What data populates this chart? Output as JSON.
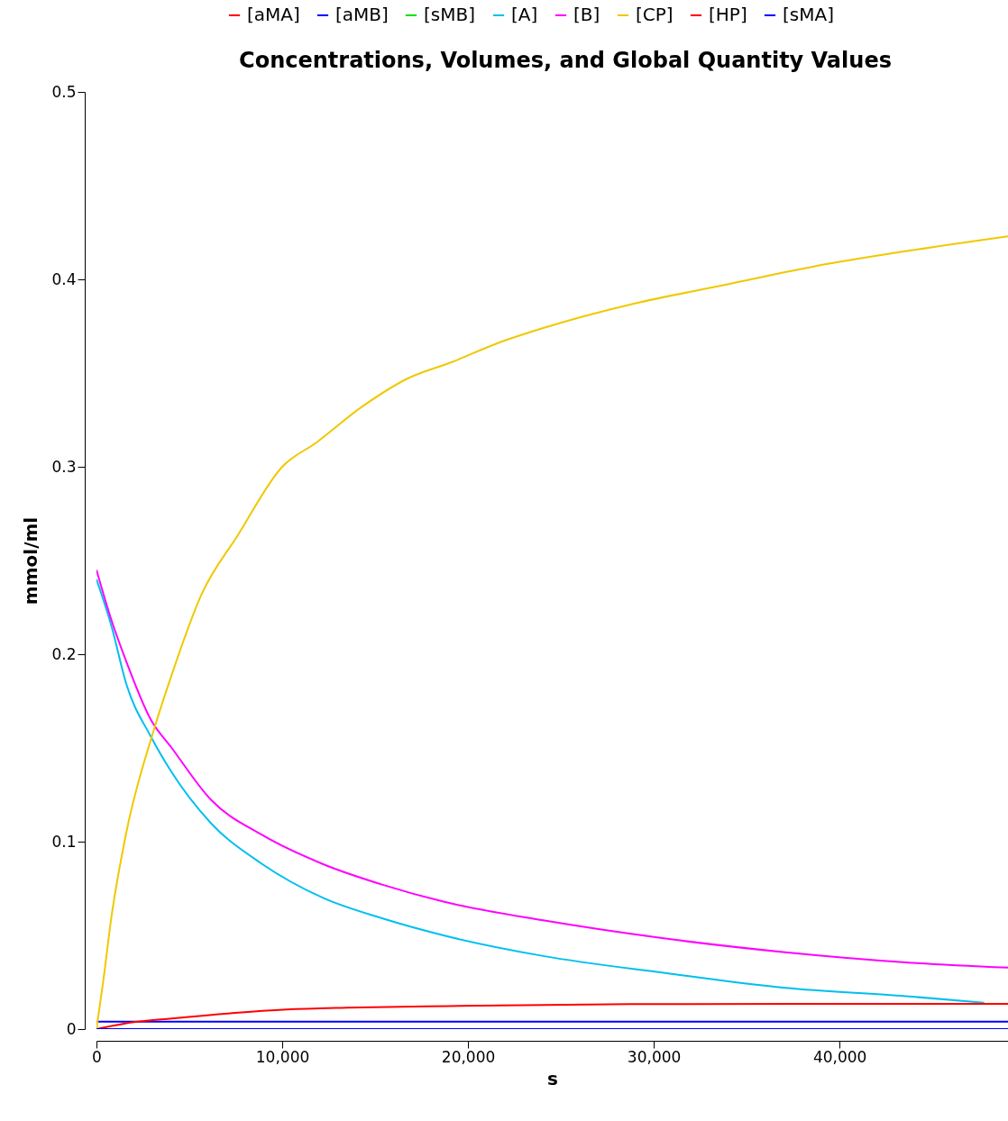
{
  "chart_data": {
    "type": "line",
    "title": "Concentrations, Volumes, and Global Quantity Values",
    "xlabel": "s",
    "ylabel": "mmol/ml",
    "xlim": [
      0,
      49070
    ],
    "ylim": [
      0,
      0.5
    ],
    "xticks": [
      0,
      {
        "value": 10000,
        "label": "10,000"
      },
      {
        "value": 20000,
        "label": "20,000"
      },
      {
        "value": 30000,
        "label": "30,000"
      },
      {
        "value": 40000,
        "label": "40,000"
      }
    ],
    "yticks": [
      0,
      0.1,
      0.2,
      0.3,
      0.4,
      0.5
    ],
    "grid": false,
    "legend": "top",
    "marker": "none",
    "line_style": "solid",
    "series": [
      {
        "name": "[aMA]",
        "color": "#ff0000"
      },
      {
        "name": "[aMB]",
        "color": "#0000ff",
        "x": [
          0,
          49070
        ],
        "values": [
          0.004,
          0.004
        ]
      },
      {
        "name": "[sMB]",
        "color": "#00e000"
      },
      {
        "name": "[A]",
        "color": "#00bfef",
        "x": [
          0,
          780,
          1610,
          2930,
          4050,
          6150,
          8930,
          12200,
          15410,
          18680,
          24050,
          30540,
          37070,
          43560,
          47800
        ],
        "values": [
          0.24,
          0.216,
          0.184,
          0.156,
          0.137,
          0.11,
          0.088,
          0.07,
          0.059,
          0.05,
          0.039,
          0.03,
          0.022,
          0.0176,
          0.014
        ]
      },
      {
        "name": "[B]",
        "color": "#ff00ff",
        "x": [
          0,
          780,
          1610,
          2930,
          4050,
          6150,
          8930,
          12200,
          15410,
          18680,
          24050,
          30540,
          37070,
          43560,
          49070
        ],
        "values": [
          0.245,
          0.219,
          0.196,
          0.165,
          0.15,
          0.1225,
          0.1035,
          0.088,
          0.077,
          0.068,
          0.058,
          0.0484,
          0.041,
          0.0356,
          0.0328
        ]
      },
      {
        "name": "[CP]",
        "color": "#f0c800",
        "x": [
          0,
          390,
          780,
          1610,
          3070,
          4050,
          5660,
          7610,
          10000,
          11850,
          14290,
          16730,
          19170,
          21610,
          24050,
          28930,
          33800,
          38680,
          43560,
          49070
        ],
        "values": [
          0,
          0.0275,
          0.058,
          0.105,
          0.159,
          0.189,
          0.232,
          0.2635,
          0.3,
          0.313,
          0.332,
          0.347,
          0.356,
          0.366,
          0.374,
          0.387,
          0.397,
          0.407,
          0.415,
          0.423
        ]
      },
      {
        "name": "[HP]",
        "color": "#ff0000",
        "x": [
          0,
          2100,
          4050,
          7300,
          10240,
          13460,
          19000,
          28780,
          49070
        ],
        "values": [
          0,
          0.0038,
          0.0057,
          0.0085,
          0.0104,
          0.0114,
          0.0123,
          0.0133,
          0.0135
        ]
      },
      {
        "name": "[sMA]",
        "color": "#0000ff",
        "x": [
          0,
          49070
        ],
        "values": [
          0,
          0
        ]
      }
    ]
  }
}
